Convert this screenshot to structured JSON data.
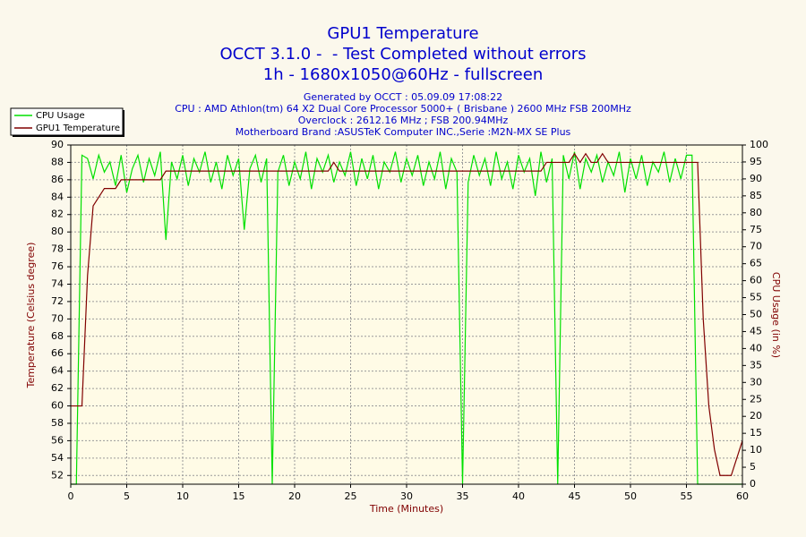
{
  "chart_data": {
    "type": "line",
    "title": "GPU1 Temperature",
    "subtitle": [
      "OCCT 3.1.0 -  - Test Completed without errors",
      "1h - 1680x1050@60Hz - fullscreen"
    ],
    "annotations": [
      "Generated by OCCT : 05.09.09 17:08:22",
      "CPU : AMD Athlon(tm) 64 X2 Dual Core Processor 5000+ ( Brisbane ) 2600 MHz FSB 200MHz",
      "Overclock : 2612.16 MHz ; FSB 200.94MHz",
      "Motherboard Brand :ASUSTeK Computer INC.,Serie :M2N-MX SE Plus"
    ],
    "x_label": "Time (Minutes)",
    "y_label": "Temperature (Celsius degree)",
    "y2_label": "CPU Usage (in %)",
    "xlim": [
      0,
      60
    ],
    "xticks": [
      0,
      5,
      10,
      15,
      20,
      25,
      30,
      35,
      40,
      45,
      50,
      55,
      60
    ],
    "ylim": [
      51,
      90
    ],
    "yticks": [
      52,
      54,
      56,
      58,
      60,
      62,
      64,
      66,
      68,
      70,
      72,
      74,
      76,
      78,
      80,
      82,
      84,
      86,
      88,
      90
    ],
    "y2lim": [
      0,
      100
    ],
    "y2ticks": [
      0,
      5,
      10,
      15,
      20,
      25,
      30,
      35,
      40,
      45,
      50,
      55,
      60,
      65,
      70,
      75,
      80,
      85,
      90,
      95,
      100
    ],
    "grid": true,
    "legend": "top-left",
    "x": [
      0,
      0.5,
      1,
      1.5,
      2,
      2.5,
      3,
      3.5,
      4,
      4.5,
      5,
      5.5,
      6,
      6.5,
      7,
      7.5,
      8,
      8.5,
      9,
      9.5,
      10,
      10.5,
      11,
      11.5,
      12,
      12.5,
      13,
      13.5,
      14,
      14.5,
      15,
      15.5,
      16,
      16.5,
      17,
      17.5,
      18,
      18.5,
      19,
      19.5,
      20,
      20.5,
      21,
      21.5,
      22,
      22.5,
      23,
      23.5,
      24,
      24.5,
      25,
      25.5,
      26,
      26.5,
      27,
      27.5,
      28,
      28.5,
      29,
      29.5,
      30,
      30.5,
      31,
      31.5,
      32,
      32.5,
      33,
      33.5,
      34,
      34.5,
      35,
      35.5,
      36,
      36.5,
      37,
      37.5,
      38,
      38.5,
      39,
      39.5,
      40,
      40.5,
      41,
      41.5,
      42,
      42.5,
      43,
      43.5,
      44,
      44.5,
      45,
      45.5,
      46,
      46.5,
      47,
      47.5,
      48,
      48.5,
      49,
      49.5,
      50,
      50.5,
      51,
      51.5,
      52,
      52.5,
      53,
      53.5,
      54,
      54.5,
      55,
      55.5,
      56,
      56.5,
      57,
      57.5,
      58,
      58.5,
      59,
      59.5,
      60
    ],
    "series": [
      {
        "name": "CPU Usage",
        "color": "#00e000",
        "axis": "y2",
        "values": [
          0,
          0,
          97,
          96,
          90,
          97,
          92,
          95,
          88,
          97,
          86,
          93,
          97,
          89,
          96,
          91,
          98,
          72,
          95,
          90,
          97,
          88,
          96,
          92,
          98,
          89,
          95,
          87,
          97,
          91,
          96,
          75,
          93,
          97,
          89,
          96,
          0,
          92,
          97,
          88,
          95,
          90,
          98,
          87,
          96,
          92,
          97,
          89,
          95,
          91,
          98,
          88,
          96,
          90,
          97,
          87,
          95,
          92,
          98,
          89,
          96,
          91,
          97,
          88,
          95,
          90,
          98,
          87,
          96,
          92,
          0,
          89,
          97,
          91,
          96,
          88,
          98,
          90,
          95,
          87,
          97,
          92,
          96,
          85,
          98,
          89,
          96,
          0,
          97,
          90,
          98,
          87,
          96,
          92,
          97,
          89,
          95,
          91,
          98,
          86,
          96,
          90,
          97,
          88,
          95,
          92,
          98,
          89,
          96,
          90,
          97,
          97,
          0,
          0,
          0,
          0,
          0,
          0,
          0,
          0,
          0
        ]
      },
      {
        "name": "GPU1 Temperature",
        "color": "#800000",
        "values": [
          60,
          60,
          60,
          75,
          83,
          84,
          85,
          85,
          85,
          86,
          86,
          86,
          86,
          86,
          86,
          86,
          86,
          87,
          87,
          87,
          87,
          87,
          87,
          87,
          87,
          87,
          87,
          87,
          87,
          87,
          87,
          87,
          87,
          87,
          87,
          87,
          87,
          87,
          87,
          87,
          87,
          87,
          87,
          87,
          87,
          87,
          87,
          88,
          87,
          87,
          87,
          87,
          87,
          87,
          87,
          87,
          87,
          87,
          87,
          87,
          87,
          87,
          87,
          87,
          87,
          87,
          87,
          87,
          87,
          87,
          87,
          87,
          87,
          87,
          87,
          87,
          87,
          87,
          87,
          87,
          87,
          87,
          87,
          87,
          87,
          88,
          88,
          88,
          88,
          88,
          89,
          88,
          89,
          88,
          88,
          89,
          88,
          88,
          88,
          88,
          88,
          88,
          88,
          88,
          88,
          88,
          88,
          88,
          88,
          88,
          88,
          88,
          88,
          70,
          60,
          55,
          52,
          52,
          52,
          54,
          56
        ]
      }
    ]
  }
}
